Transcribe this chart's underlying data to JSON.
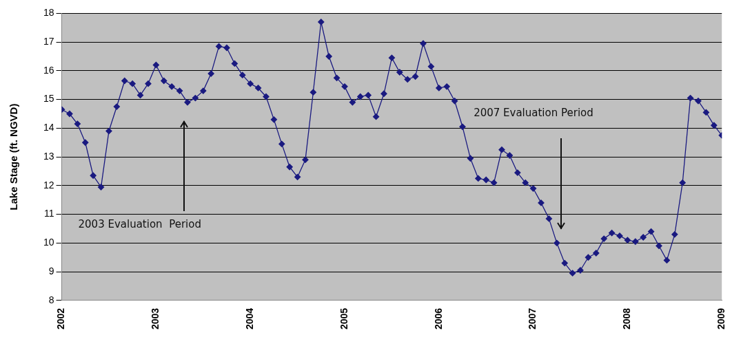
{
  "chart_data": {
    "type": "line",
    "ylabel": "Lake Stage (ft. NGVD)",
    "x": [
      "2002-01",
      "2002-02",
      "2002-03",
      "2002-04",
      "2002-05",
      "2002-06",
      "2002-07",
      "2002-08",
      "2002-09",
      "2002-10",
      "2002-11",
      "2002-12",
      "2003-01",
      "2003-02",
      "2003-03",
      "2003-04",
      "2003-05",
      "2003-06",
      "2003-07",
      "2003-08",
      "2003-09",
      "2003-10",
      "2003-11",
      "2003-12",
      "2004-01",
      "2004-02",
      "2004-03",
      "2004-04",
      "2004-05",
      "2004-06",
      "2004-07",
      "2004-08",
      "2004-09",
      "2004-10",
      "2004-11",
      "2004-12",
      "2005-01",
      "2005-02",
      "2005-03",
      "2005-04",
      "2005-05",
      "2005-06",
      "2005-07",
      "2005-08",
      "2005-09",
      "2005-10",
      "2005-11",
      "2005-12",
      "2006-01",
      "2006-02",
      "2006-03",
      "2006-04",
      "2006-05",
      "2006-06",
      "2006-07",
      "2006-08",
      "2006-09",
      "2006-10",
      "2006-11",
      "2006-12",
      "2007-01",
      "2007-02",
      "2007-03",
      "2007-04",
      "2007-05",
      "2007-06",
      "2007-07",
      "2007-08",
      "2007-09",
      "2007-10",
      "2007-11",
      "2007-12",
      "2008-01",
      "2008-02",
      "2008-03",
      "2008-04",
      "2008-05",
      "2008-06",
      "2008-07",
      "2008-08",
      "2008-09",
      "2008-10",
      "2008-11",
      "2008-12",
      "2009-01"
    ],
    "series": [
      {
        "color": "#1a1a80",
        "values": [
          14.65,
          14.5,
          14.15,
          13.5,
          12.35,
          11.95,
          13.9,
          14.75,
          15.65,
          15.55,
          15.15,
          15.55,
          16.2,
          15.65,
          15.45,
          15.3,
          14.9,
          15.05,
          15.3,
          15.9,
          16.85,
          16.8,
          16.25,
          15.85,
          15.55,
          15.4,
          15.1,
          14.3,
          13.45,
          12.65,
          12.3,
          12.9,
          15.25,
          17.7,
          16.5,
          15.75,
          15.45,
          14.9,
          15.1,
          15.15,
          14.4,
          15.2,
          16.45,
          15.95,
          15.7,
          15.8,
          16.95,
          16.15,
          15.4,
          15.45,
          14.95,
          14.05,
          12.95,
          12.25,
          12.2,
          12.1,
          13.25,
          13.05,
          12.45,
          12.1,
          11.9,
          11.4,
          10.85,
          10.0,
          9.3,
          8.95,
          9.05,
          9.5,
          9.65,
          10.15,
          10.35,
          10.25,
          10.1,
          10.05,
          10.2,
          10.4,
          9.9,
          9.4,
          10.3,
          12.1,
          15.05,
          14.95,
          14.55,
          14.1,
          13.75
        ]
      }
    ],
    "xlim": [
      "2002-01",
      "2009-01"
    ],
    "xticks": [
      "2002",
      "2003",
      "2004",
      "2005",
      "2006",
      "2007",
      "2008",
      "2009"
    ],
    "ylim": [
      8,
      18
    ],
    "yticks": [
      8,
      9,
      10,
      11,
      12,
      13,
      14,
      15,
      16,
      17,
      18
    ],
    "grid": "y",
    "marker": "diamond",
    "line_style": "solid",
    "legend": false,
    "annotations": [
      "2003 Evaluation  Period",
      "2007 Evaluation Period"
    ]
  }
}
